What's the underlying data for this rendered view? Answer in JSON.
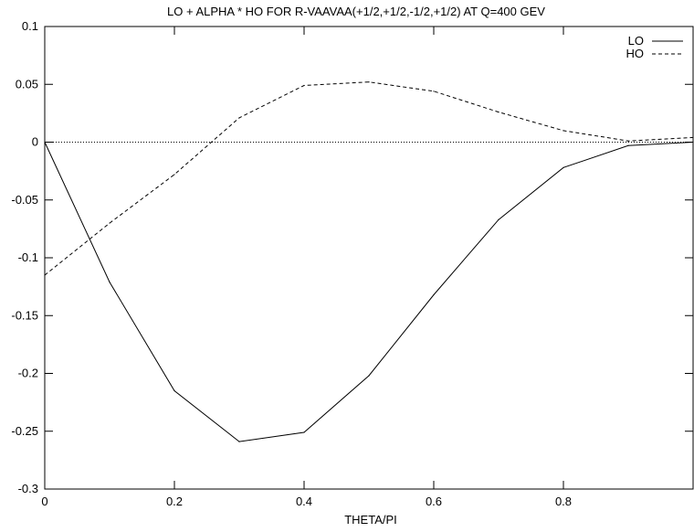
{
  "chart_data": {
    "type": "line",
    "title": "LO + ALPHA * HO FOR R-VAAVAA(+1/2,+1/2,-1/2,+1/2) AT Q=400 GEV",
    "xlabel": "THETA/PI",
    "ylabel": "",
    "xlim": [
      0,
      1
    ],
    "ylim": [
      -0.3,
      0.1
    ],
    "xticks": [
      0,
      0.2,
      0.4,
      0.6,
      0.8
    ],
    "xtick_labels": [
      "0",
      "0.2",
      "0.4",
      "0.6",
      "0.8"
    ],
    "yticks": [
      -0.3,
      -0.25,
      -0.2,
      -0.15,
      -0.1,
      -0.05,
      0,
      0.05,
      0.1
    ],
    "ytick_labels": [
      "-0.3",
      "-0.25",
      "-0.2",
      "-0.15",
      "-0.1",
      "-0.05",
      "0",
      "0.05",
      "0.1"
    ],
    "grid": false,
    "zero_line": true,
    "legend_position": "top-right",
    "series": [
      {
        "name": "LO",
        "style": "solid",
        "color": "#000000",
        "x": [
          0,
          0.1,
          0.2,
          0.3,
          0.4,
          0.5,
          0.6,
          0.7,
          0.8,
          0.9,
          1.0
        ],
        "y": [
          0,
          -0.121,
          -0.215,
          -0.259,
          -0.251,
          -0.202,
          -0.132,
          -0.067,
          -0.022,
          -0.003,
          0
        ]
      },
      {
        "name": "HO",
        "style": "dashed",
        "color": "#000000",
        "x": [
          0,
          0.1,
          0.2,
          0.3,
          0.4,
          0.5,
          0.6,
          0.7,
          0.8,
          0.9,
          1.0
        ],
        "y": [
          -0.115,
          -0.07,
          -0.028,
          0.021,
          0.049,
          0.052,
          0.044,
          0.026,
          0.01,
          0.001,
          0.004
        ]
      }
    ]
  }
}
